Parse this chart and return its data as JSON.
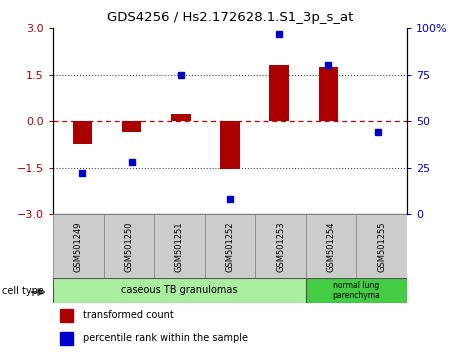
{
  "title": "GDS4256 / Hs2.172628.1.S1_3p_s_at",
  "samples": [
    "GSM501249",
    "GSM501250",
    "GSM501251",
    "GSM501252",
    "GSM501253",
    "GSM501254",
    "GSM501255"
  ],
  "transformed_count": [
    -0.72,
    -0.35,
    0.25,
    -1.55,
    1.82,
    1.75,
    0.02
  ],
  "percentile_rank": [
    22,
    28,
    75,
    8,
    97,
    80,
    44
  ],
  "ylim_left": [
    -3,
    3
  ],
  "ylim_right": [
    0,
    100
  ],
  "yticks_left": [
    -3,
    -1.5,
    0,
    1.5,
    3
  ],
  "yticks_right": [
    0,
    25,
    50,
    75,
    100
  ],
  "bar_color": "#AA0000",
  "dot_color": "#0000CC",
  "hline_color": "#CC0000",
  "cell_type_groups": [
    {
      "label": "caseous TB granulomas",
      "start": 0,
      "end": 5,
      "color": "#AAEEA0"
    },
    {
      "label": "normal lung\nparenchyma",
      "start": 5,
      "end": 7,
      "color": "#44CC44"
    }
  ],
  "legend_entries": [
    {
      "label": "transformed count",
      "color": "#AA0000"
    },
    {
      "label": "percentile rank within the sample",
      "color": "#0000CC"
    }
  ],
  "cell_type_label": "cell type",
  "sample_box_color": "#CCCCCC",
  "sample_box_edge": "#888888"
}
